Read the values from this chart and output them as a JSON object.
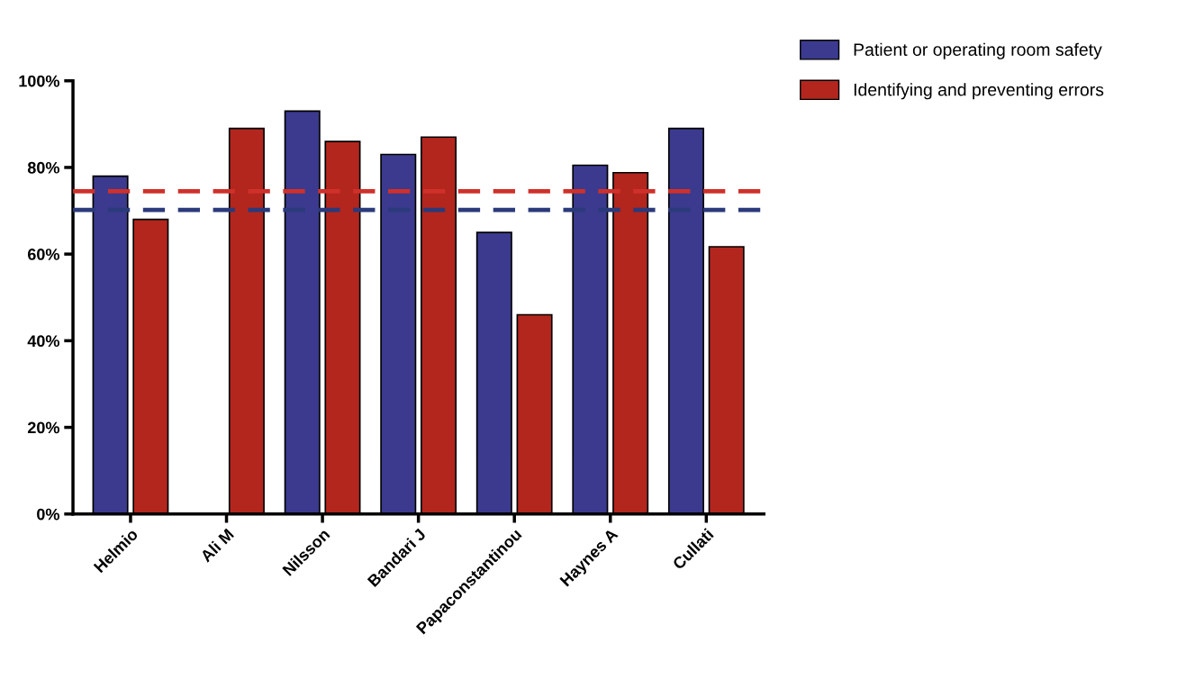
{
  "chart_data": {
    "type": "bar",
    "categories": [
      "Helmio",
      "Ali M",
      "Nilsson",
      "Bandari J",
      "Papaconstantinou",
      "Haynes A",
      "Cullati"
    ],
    "series": [
      {
        "name": "Patient or operating room safety",
        "color": "#3b3a8e",
        "values": [
          78,
          null,
          93,
          83,
          65,
          80.5,
          89
        ]
      },
      {
        "name": "Identifying and preventing errors",
        "color": "#b3261e",
        "values": [
          68,
          89,
          86,
          87,
          46,
          78.8,
          61.7
        ]
      }
    ],
    "ylim": [
      0,
      100
    ],
    "yticks": [
      {
        "value": 0,
        "label": "0%"
      },
      {
        "value": 20,
        "label": "20%"
      },
      {
        "value": 40,
        "label": "40%"
      },
      {
        "value": 60,
        "label": "60%"
      },
      {
        "value": 80,
        "label": "80%"
      },
      {
        "value": 100,
        "label": "100%"
      }
    ],
    "ref_lines": [
      {
        "axis": "y",
        "value": 74.5,
        "color": "#d0302a",
        "line_style": "dashed"
      },
      {
        "axis": "y",
        "value": 70.2,
        "color": "#2b3a7a",
        "line_style": "dashed"
      }
    ],
    "grid": false,
    "legend": "top right"
  }
}
